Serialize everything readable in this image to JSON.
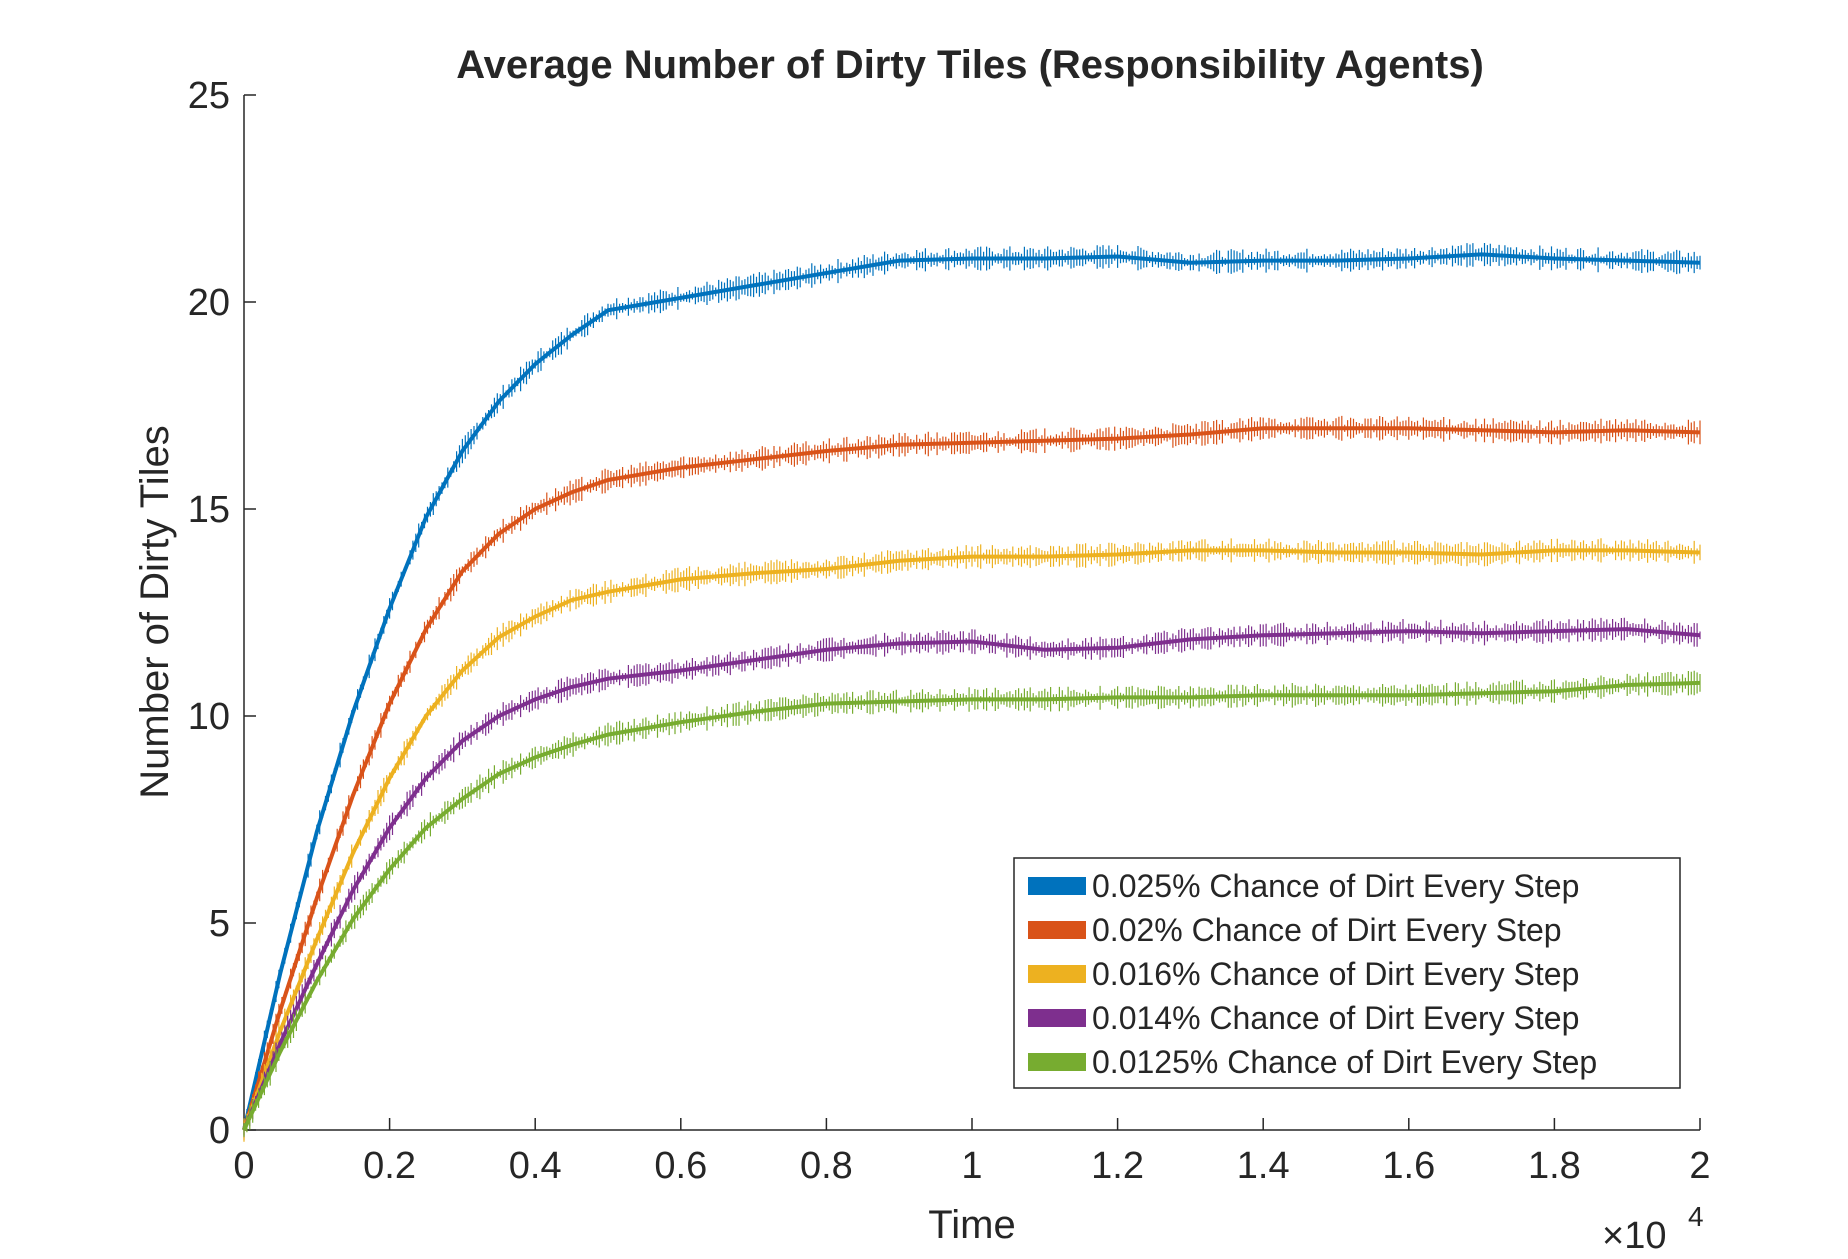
{
  "chart_data": {
    "type": "line",
    "title": "Average Number of Dirty Tiles (Responsibility Agents)",
    "xlabel": "Time",
    "ylabel": "Number of Dirty Tiles",
    "x_multiplier_label": "×10",
    "x_multiplier_exponent": "4",
    "xlim": [
      0,
      20000
    ],
    "ylim": [
      0,
      25
    ],
    "x_ticks": [
      0,
      2000,
      4000,
      6000,
      8000,
      10000,
      12000,
      14000,
      16000,
      18000,
      20000
    ],
    "x_tick_labels": [
      "0",
      "0.2",
      "0.4",
      "0.6",
      "0.8",
      "1",
      "1.2",
      "1.4",
      "1.6",
      "1.8",
      "2"
    ],
    "y_ticks": [
      0,
      5,
      10,
      15,
      20,
      25
    ],
    "y_tick_labels": [
      "0",
      "5",
      "10",
      "15",
      "20",
      "25"
    ],
    "grid": false,
    "legend_position": "bottom-right",
    "x": [
      0,
      500,
      1000,
      1500,
      2000,
      2500,
      3000,
      3500,
      4000,
      4500,
      5000,
      6000,
      7000,
      8000,
      9000,
      10000,
      11000,
      12000,
      13000,
      14000,
      15000,
      16000,
      17000,
      18000,
      19000,
      20000
    ],
    "series": [
      {
        "name": "0.025% Chance of Dirt Every Step",
        "color": "#0072BD",
        "values": [
          0,
          3.8,
          7.2,
          10.1,
          12.6,
          14.8,
          16.4,
          17.6,
          18.5,
          19.2,
          19.8,
          20.1,
          20.4,
          20.7,
          21.0,
          21.05,
          21.05,
          21.1,
          20.95,
          21.0,
          21.0,
          21.05,
          21.15,
          21.05,
          21.0,
          20.95
        ]
      },
      {
        "name": "0.02% Chance of Dirt Every Step",
        "color": "#D95319",
        "values": [
          0,
          2.9,
          5.6,
          8.1,
          10.3,
          12.1,
          13.5,
          14.4,
          15.0,
          15.4,
          15.7,
          16.0,
          16.2,
          16.4,
          16.55,
          16.6,
          16.65,
          16.7,
          16.8,
          16.95,
          16.95,
          16.95,
          16.9,
          16.85,
          16.9,
          16.85
        ]
      },
      {
        "name": "0.016% Chance of Dirt Every Step",
        "color": "#EDB120",
        "values": [
          0,
          2.4,
          4.6,
          6.7,
          8.5,
          10.0,
          11.1,
          11.9,
          12.4,
          12.8,
          13.0,
          13.3,
          13.45,
          13.55,
          13.75,
          13.85,
          13.85,
          13.9,
          14.0,
          14.0,
          13.95,
          13.95,
          13.9,
          14.0,
          14.0,
          13.95
        ]
      },
      {
        "name": "0.014% Chance of Dirt Every Step",
        "color": "#7E2F8E",
        "values": [
          0,
          2.1,
          4.0,
          5.8,
          7.3,
          8.5,
          9.4,
          10.0,
          10.4,
          10.7,
          10.9,
          11.1,
          11.35,
          11.6,
          11.75,
          11.8,
          11.6,
          11.65,
          11.85,
          11.95,
          12.0,
          12.05,
          12.0,
          12.05,
          12.1,
          11.95
        ]
      },
      {
        "name": "0.0125% Chance of Dirt Every Step",
        "color": "#77AC30",
        "values": [
          0,
          1.9,
          3.6,
          5.1,
          6.3,
          7.3,
          8.0,
          8.6,
          9.0,
          9.3,
          9.55,
          9.85,
          10.1,
          10.3,
          10.35,
          10.4,
          10.4,
          10.45,
          10.45,
          10.5,
          10.5,
          10.5,
          10.55,
          10.6,
          10.75,
          10.8
        ]
      }
    ]
  }
}
